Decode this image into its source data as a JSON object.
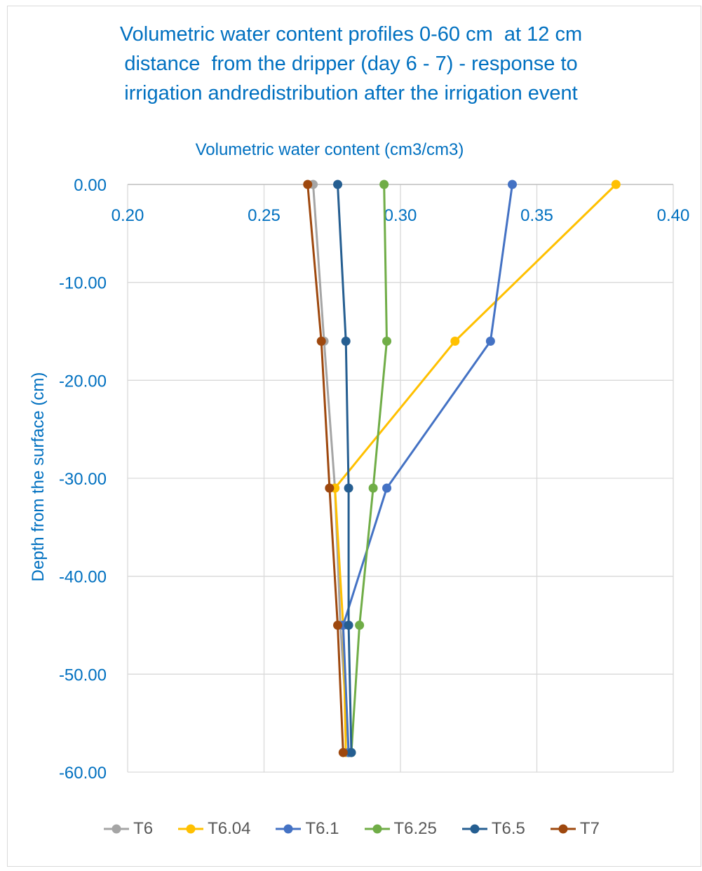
{
  "chart_data": {
    "type": "line",
    "title_lines": [
      "Volumetric water content profiles 0-60 cm  at 12 cm",
      "distance  from the dripper (day 6 - 7) - response to",
      "irrigation andredistribution after the irrigation event"
    ],
    "xlabel": "Volumetric water content (cm3/cm3)",
    "ylabel": "Depth from the surface (cm)",
    "xlim": [
      0.2,
      0.4
    ],
    "ylim": [
      -60,
      0
    ],
    "x_ticks": [
      "0.20",
      "0.25",
      "0.30",
      "0.35",
      "0.40"
    ],
    "y_ticks": [
      "0.00",
      "-10.00",
      "-20.00",
      "-30.00",
      "-40.00",
      "-50.00",
      "-60.00"
    ],
    "x_tick_values": [
      0.2,
      0.25,
      0.3,
      0.35,
      0.4
    ],
    "y_tick_values": [
      0,
      -10,
      -20,
      -30,
      -40,
      -50,
      -60
    ],
    "grid": true,
    "legend_position": "bottom",
    "depths": [
      0,
      -16,
      -31,
      -45,
      -58
    ],
    "series": [
      {
        "name": "T6",
        "color": "#a5a5a5",
        "x": [
          0.268,
          0.272,
          0.276,
          0.278,
          0.281
        ]
      },
      {
        "name": "T6.04",
        "color": "#ffc000",
        "x": [
          0.379,
          0.32,
          0.276,
          0.279,
          0.28
        ]
      },
      {
        "name": "T6.1",
        "color": "#4472c4",
        "x": [
          0.341,
          0.333,
          0.295,
          0.279,
          0.281
        ]
      },
      {
        "name": "T6.25",
        "color": "#70ad47",
        "x": [
          0.294,
          0.295,
          0.29,
          0.285,
          0.282
        ]
      },
      {
        "name": "T6.5",
        "color": "#255e91",
        "x": [
          0.277,
          0.28,
          0.281,
          0.281,
          0.282
        ]
      },
      {
        "name": "T7",
        "color": "#9e480e",
        "x": [
          0.266,
          0.271,
          0.274,
          0.277,
          0.279
        ]
      }
    ]
  }
}
